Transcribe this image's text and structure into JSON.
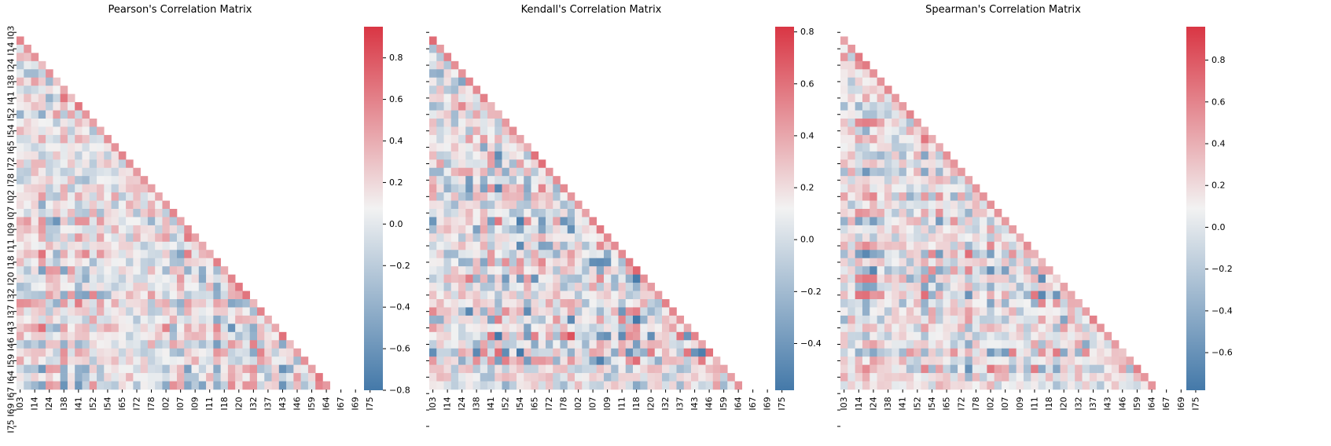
{
  "figure": {
    "labels": [
      "I03",
      "I14",
      "I24",
      "I38",
      "I41",
      "I52",
      "I54",
      "I65",
      "I72",
      "I78",
      "I02",
      "I07",
      "I09",
      "I11",
      "I18",
      "I20",
      "I32",
      "I37",
      "I43",
      "I46",
      "I59",
      "I64",
      "I67",
      "I69",
      "I75"
    ],
    "colors": {
      "negative": "#4479a9",
      "neutral": "#f2f2f2",
      "positive": "#d93644"
    }
  },
  "chart_data": [
    {
      "type": "heatmap",
      "title": "Pearson's Correlation Matrix",
      "mask": "upper-triangle",
      "n_variables": 44,
      "colorbar": {
        "range": [
          -0.8,
          0.95
        ],
        "ticks": [
          "-0.8",
          "-0.6",
          "-0.4",
          "-0.2",
          "0.0",
          "0.2",
          "0.4",
          "0.6",
          "0.8"
        ]
      },
      "seed": 11
    },
    {
      "type": "heatmap",
      "title": "Kendall's Correlation Matrix",
      "mask": "upper-triangle",
      "n_variables": 44,
      "colorbar": {
        "range": [
          -0.58,
          0.82
        ],
        "ticks": [
          "-0.4",
          "-0.2",
          "0.0",
          "0.2",
          "0.4",
          "0.6",
          "0.8"
        ]
      },
      "seed": 23
    },
    {
      "type": "heatmap",
      "title": "Spearman's Correlation Matrix",
      "mask": "upper-triangle",
      "n_variables": 44,
      "colorbar": {
        "range": [
          -0.78,
          0.96
        ],
        "ticks": [
          "-0.6",
          "-0.4",
          "-0.2",
          "0.0",
          "0.2",
          "0.4",
          "0.6",
          "0.8"
        ]
      },
      "seed": 37
    }
  ]
}
